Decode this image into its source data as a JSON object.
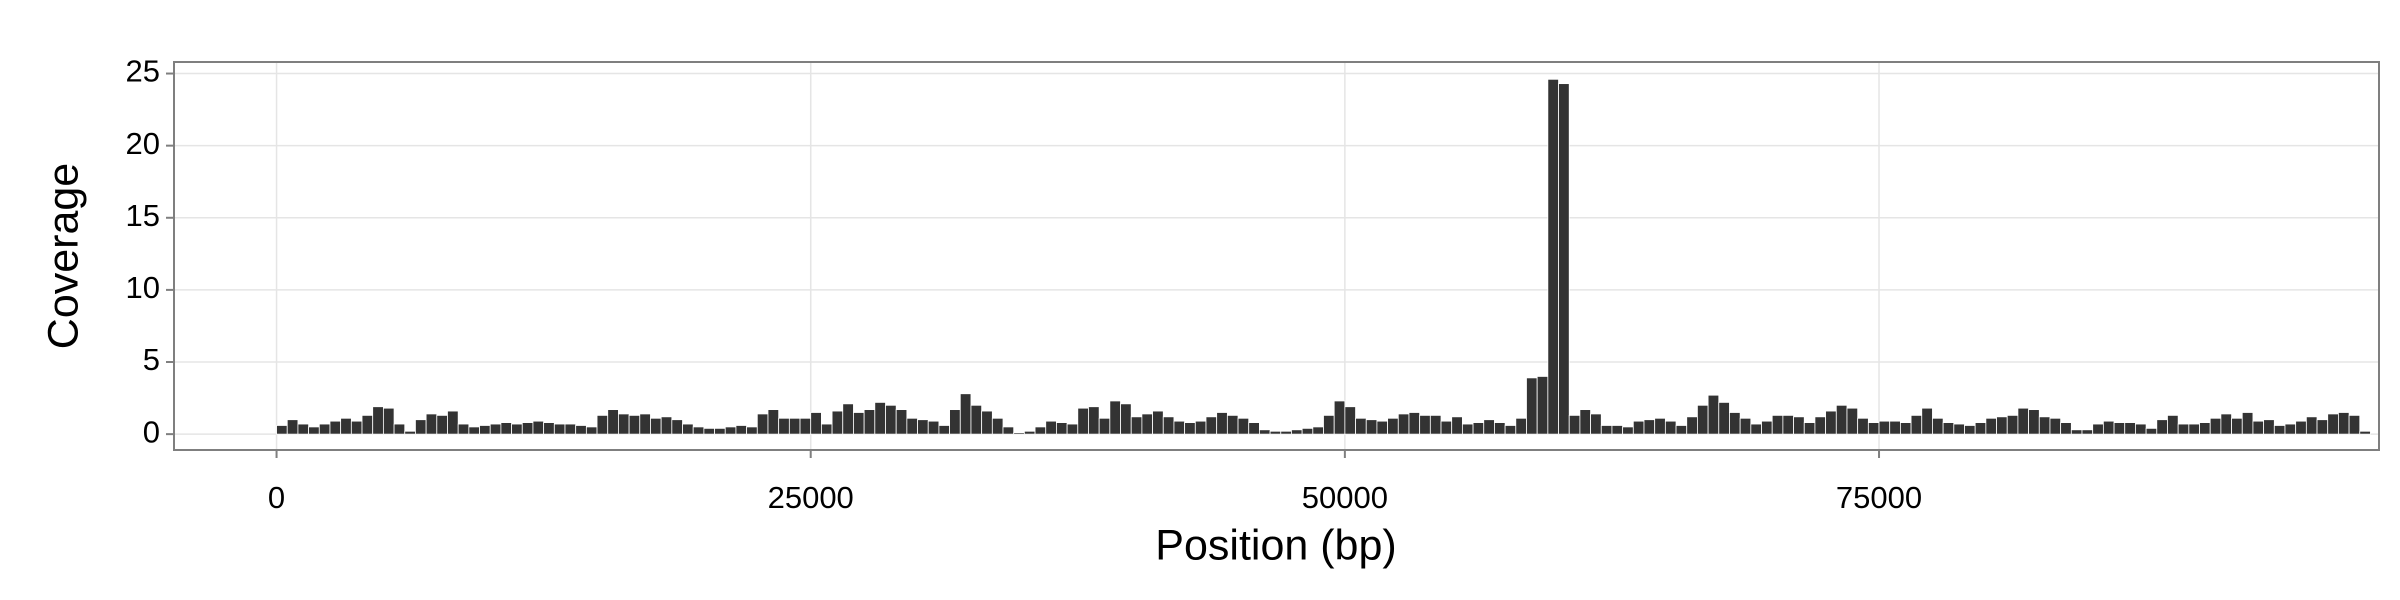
{
  "chart_data": {
    "type": "histogram",
    "xlabel": "Position (bp)",
    "ylabel": "Coverage",
    "bins": [
      0,
      500,
      1000,
      1500,
      2000,
      2500,
      3000,
      3500,
      4000,
      4500,
      5000,
      5500,
      6000,
      6500,
      7000,
      7500,
      8000,
      8500,
      9000,
      9500,
      10000,
      10500,
      11000,
      11500,
      12000,
      12500,
      13000,
      13500,
      14000,
      14500,
      15000,
      15500,
      16000,
      16500,
      17000,
      17500,
      18000,
      18500,
      19000,
      19500,
      20000,
      20500,
      21000,
      21500,
      22000,
      22500,
      23000,
      23500,
      24000,
      24500,
      25000,
      25500,
      26000,
      26500,
      27000,
      27500,
      28000,
      28500,
      29000,
      29500,
      30000,
      30500,
      31000,
      31500,
      32000,
      32500,
      33000,
      33500,
      34000,
      34500,
      35000,
      35500,
      36000,
      36500,
      37000,
      37500,
      38000,
      38500,
      39000,
      39500,
      40000,
      40500,
      41000,
      41500,
      42000,
      42500,
      43000,
      43500,
      44000,
      44500,
      45000,
      45500,
      46000,
      46500,
      47000,
      47500,
      48000,
      48500,
      49000,
      49500,
      50000,
      50500,
      51000,
      51500,
      52000,
      52500,
      53000,
      53500,
      54000,
      54500,
      55000,
      55500,
      56000,
      56500,
      57000,
      57500,
      58000,
      58500,
      59000,
      59500,
      60000,
      60500,
      61000,
      61500,
      62000,
      62500,
      63000,
      63500,
      64000,
      64500,
      65000,
      65500,
      66000,
      66500,
      67000,
      67500,
      68000,
      68500,
      69000,
      69500,
      70000,
      70500,
      71000,
      71500,
      72000,
      72500,
      73000,
      73500,
      74000,
      74500,
      75000,
      75500,
      76000,
      76500,
      77000,
      77500,
      78000,
      78500,
      79000,
      79500,
      80000,
      80500,
      81000,
      81500,
      82000,
      82500,
      83000,
      83500,
      84000,
      84500,
      85000,
      85500,
      86000,
      86500,
      87000,
      87500,
      88000,
      88500,
      89000,
      89500,
      90000,
      90500,
      91000,
      91500,
      92000,
      92500,
      93000,
      93500,
      94000,
      94500,
      95000,
      95500,
      96000,
      96500,
      97000,
      97500,
      98000
    ],
    "values": [
      0.6,
      1.0,
      0.7,
      0.5,
      0.7,
      0.9,
      1.1,
      0.9,
      1.3,
      1.9,
      1.8,
      0.7,
      0.2,
      1.0,
      1.4,
      1.3,
      1.6,
      0.7,
      0.5,
      0.6,
      0.7,
      0.8,
      0.7,
      0.8,
      0.9,
      0.8,
      0.7,
      0.7,
      0.6,
      0.5,
      1.3,
      1.7,
      1.4,
      1.3,
      1.4,
      1.1,
      1.2,
      1.0,
      0.7,
      0.5,
      0.4,
      0.4,
      0.5,
      0.6,
      0.5,
      1.4,
      1.7,
      1.1,
      1.1,
      1.1,
      1.5,
      0.7,
      1.6,
      2.1,
      1.5,
      1.7,
      2.2,
      2.0,
      1.7,
      1.1,
      1.0,
      0.9,
      0.6,
      1.7,
      2.8,
      2.0,
      1.6,
      1.1,
      0.5,
      0.1,
      0.2,
      0.5,
      0.9,
      0.8,
      0.7,
      1.8,
      1.9,
      1.1,
      2.3,
      2.1,
      1.2,
      1.4,
      1.6,
      1.2,
      0.9,
      0.8,
      0.9,
      1.2,
      1.5,
      1.3,
      1.1,
      0.8,
      0.3,
      0.2,
      0.2,
      0.3,
      0.4,
      0.5,
      1.3,
      2.3,
      1.9,
      1.1,
      1.0,
      0.9,
      1.1,
      1.4,
      1.5,
      1.3,
      1.3,
      0.9,
      1.2,
      0.7,
      0.8,
      1.0,
      0.8,
      0.6,
      1.1,
      3.9,
      4.0,
      24.6,
      24.3,
      1.3,
      1.7,
      1.4,
      0.6,
      0.6,
      0.5,
      0.9,
      1.0,
      1.1,
      0.9,
      0.6,
      1.2,
      2.0,
      2.7,
      2.2,
      1.5,
      1.1,
      0.7,
      0.9,
      1.3,
      1.3,
      1.2,
      0.8,
      1.2,
      1.6,
      2.0,
      1.8,
      1.1,
      0.8,
      0.9,
      0.9,
      0.8,
      1.3,
      1.8,
      1.1,
      0.8,
      0.7,
      0.6,
      0.8,
      1.1,
      1.2,
      1.3,
      1.8,
      1.7,
      1.2,
      1.1,
      0.8,
      0.3,
      0.3,
      0.7,
      0.9,
      0.8,
      0.8,
      0.7,
      0.4,
      1.0,
      1.3,
      0.7,
      0.7,
      0.8,
      1.1,
      1.4,
      1.1,
      1.5,
      0.9,
      1.0,
      0.6,
      0.7,
      0.9,
      1.2,
      1.0,
      1.4,
      1.5,
      1.3,
      0.2
    ],
    "color": "#333333",
    "xlim": [
      -4800,
      98400
    ],
    "ylim": [
      -1.1,
      25.8
    ],
    "xticks": [
      0,
      25000,
      50000,
      75000
    ],
    "yticks": [
      0,
      5,
      10,
      15,
      20,
      25
    ],
    "grid": true
  }
}
